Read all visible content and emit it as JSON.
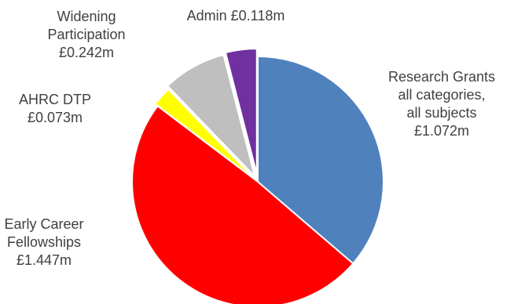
{
  "chart_data": {
    "type": "pie",
    "title": "",
    "unit": "£m",
    "slices": [
      {
        "name": "Research Grants all categories, all subjects",
        "value": 1.072,
        "color": "#4F81BD",
        "label_lines": [
          "Research Grants",
          "all categories,",
          "all subjects",
          "£1.072m"
        ]
      },
      {
        "name": "Early Career Fellowships",
        "value": 1.447,
        "color": "#FF0000",
        "label_lines": [
          "Early Career",
          "Fellowships",
          "£1.447m"
        ]
      },
      {
        "name": "AHRC DTP",
        "value": 0.073,
        "color": "#FFFF00",
        "label_lines": [
          "AHRC DTP",
          "£0.073m"
        ]
      },
      {
        "name": "Widening Participation",
        "value": 0.242,
        "color": "#BFBFBF",
        "label_lines": [
          "Widening",
          "Participation",
          "£0.242m"
        ]
      },
      {
        "name": "Admin",
        "value": 0.118,
        "color": "#7030A0",
        "label_lines": [
          "Admin £0.118m"
        ]
      }
    ]
  }
}
